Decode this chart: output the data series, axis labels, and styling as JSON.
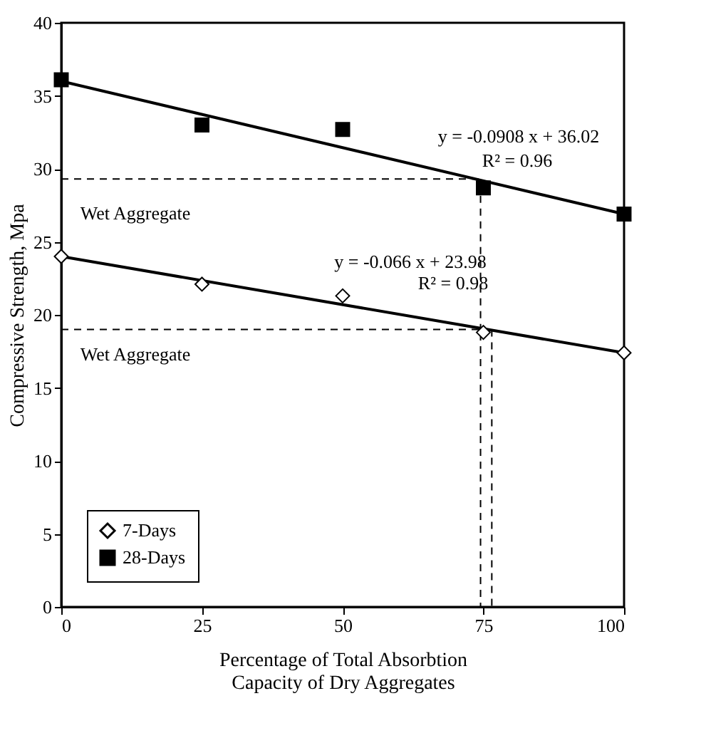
{
  "chart_data": {
    "type": "scatter",
    "xlabel": "Percentage of Total Absorbtion\nCapacity of Dry Aggregates",
    "ylabel": "Compressive Strength, Mpa",
    "x": [
      0,
      25,
      50,
      75,
      100
    ],
    "series": [
      {
        "name": "7-Days",
        "marker": "diamond",
        "color": "#000000",
        "values": [
          24.0,
          22.1,
          21.3,
          18.8,
          17.4
        ]
      },
      {
        "name": "28-Days",
        "marker": "square",
        "color": "#000000",
        "values": [
          36.1,
          33.0,
          32.7,
          28.7,
          26.9
        ]
      },
      {
        "type": "line",
        "x": [
          0,
          100
        ],
        "color": "#000000",
        "line_style": "solid",
        "values": [
          24.0,
          17.4
        ]
      },
      {
        "type": "line",
        "x": [
          0,
          100
        ],
        "color": "#000000",
        "line_style": "solid",
        "values": [
          36.0,
          26.9
        ]
      },
      {
        "type": "line",
        "x": [
          0,
          74.5,
          74.5
        ],
        "color": "#000000",
        "line_style": "dashed",
        "values": [
          29.3,
          29.3,
          19
        ]
      },
      {
        "type": "line",
        "x": [
          0,
          74.5,
          74.5
        ],
        "color": "#000000",
        "line_style": "dashed",
        "values": [
          19,
          19,
          0
        ]
      },
      {
        "type": "line",
        "x": [
          76.5,
          76.5
        ],
        "color": "#000000",
        "line_style": "dashed",
        "values": [
          19,
          0
        ]
      }
    ],
    "annotations": [
      "y = -0.0908 x + 36.02",
      "R² = 0.96",
      "y = -0.066 x + 23.98",
      "R² = 0.98",
      "Wet Aggregate",
      "Wet Aggregate"
    ],
    "xlim": [
      0,
      100
    ],
    "ylim": [
      0,
      40
    ],
    "xticks": [
      0,
      25,
      50,
      75,
      100
    ],
    "yticks": [
      0,
      5,
      10,
      15,
      20,
      25,
      30,
      35,
      40
    ],
    "grid": false,
    "legend": "bottom left"
  }
}
